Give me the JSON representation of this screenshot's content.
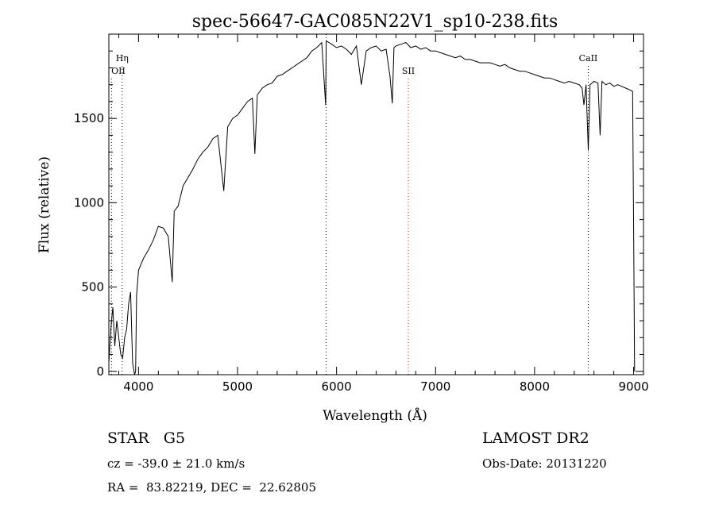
{
  "chart_data": {
    "type": "line",
    "title": "spec-56647-GAC085N22V1_sp10-238.fits",
    "xlabel": "Wavelength (Å)",
    "ylabel": "Flux (relative)",
    "xlim": [
      3700,
      9100
    ],
    "ylim": [
      -20,
      2000
    ],
    "xticks": [
      4000,
      5000,
      6000,
      7000,
      8000,
      9000
    ],
    "xtick_labels": [
      "4000",
      "5000",
      "6000",
      "7000",
      "8000",
      "9000"
    ],
    "yticks": [
      0,
      500,
      1000,
      1500
    ],
    "ytick_labels": [
      "0",
      "500",
      "1000",
      "1500"
    ],
    "grid": false,
    "series": [
      {
        "x": [
          3700,
          3720,
          3740,
          3760,
          3780,
          3800,
          3820,
          3840,
          3860,
          3880,
          3900,
          3920,
          3940,
          3960,
          3970,
          3980,
          4000,
          4050,
          4100,
          4150,
          4200,
          4250,
          4300,
          4340,
          4360,
          4400,
          4450,
          4500,
          4550,
          4600,
          4650,
          4700,
          4750,
          4800,
          4861,
          4900,
          4950,
          5000,
          5050,
          5100,
          5150,
          5175,
          5200,
          5250,
          5300,
          5350,
          5400,
          5450,
          5500,
          5550,
          5600,
          5650,
          5700,
          5750,
          5800,
          5850,
          5890,
          5895,
          5950,
          6000,
          6050,
          6100,
          6150,
          6200,
          6250,
          6300,
          6350,
          6400,
          6450,
          6500,
          6540,
          6563,
          6580,
          6600,
          6650,
          6700,
          6750,
          6800,
          6850,
          6900,
          6950,
          7000,
          7050,
          7100,
          7150,
          7200,
          7250,
          7300,
          7350,
          7400,
          7450,
          7500,
          7550,
          7600,
          7650,
          7700,
          7750,
          7800,
          7850,
          7900,
          7950,
          8000,
          8050,
          8100,
          8150,
          8200,
          8250,
          8300,
          8350,
          8400,
          8450,
          8480,
          8498,
          8520,
          8542,
          8560,
          8600,
          8640,
          8662,
          8680,
          8720,
          8760,
          8800,
          8840,
          8880,
          8920,
          8960,
          8990,
          9000,
          9010
        ],
        "y": [
          50,
          250,
          380,
          150,
          300,
          200,
          100,
          80,
          200,
          250,
          400,
          470,
          50,
          -20,
          0,
          450,
          600,
          670,
          720,
          780,
          860,
          850,
          800,
          530,
          950,
          980,
          1100,
          1150,
          1200,
          1260,
          1300,
          1330,
          1380,
          1400,
          1070,
          1450,
          1500,
          1520,
          1560,
          1600,
          1620,
          1290,
          1640,
          1680,
          1700,
          1710,
          1750,
          1760,
          1780,
          1800,
          1820,
          1840,
          1860,
          1900,
          1920,
          1950,
          1580,
          1960,
          1940,
          1920,
          1930,
          1910,
          1880,
          1930,
          1700,
          1900,
          1920,
          1930,
          1900,
          1910,
          1750,
          1590,
          1920,
          1930,
          1940,
          1950,
          1920,
          1930,
          1910,
          1920,
          1900,
          1900,
          1890,
          1880,
          1870,
          1860,
          1870,
          1850,
          1850,
          1840,
          1830,
          1830,
          1830,
          1820,
          1810,
          1820,
          1800,
          1790,
          1780,
          1780,
          1770,
          1760,
          1750,
          1740,
          1740,
          1730,
          1720,
          1710,
          1720,
          1710,
          1700,
          1680,
          1580,
          1700,
          1310,
          1700,
          1720,
          1710,
          1400,
          1720,
          1700,
          1710,
          1690,
          1700,
          1690,
          1680,
          1670,
          1660,
          900,
          0
        ]
      }
    ],
    "lines": [
      {
        "label": "Hη",
        "x": 3835,
        "color": "#000000",
        "label_y": 1840
      },
      {
        "label": "OII",
        "x": 3727,
        "color": "#000000",
        "label_y": 1765
      },
      {
        "label": "",
        "x": 5895,
        "color": "#000000",
        "label_y": null
      },
      {
        "label": "SII",
        "x": 6725,
        "color": "#cc0000",
        "label_y": 1765
      },
      {
        "label": "CaII",
        "x": 8542,
        "color": "#000000",
        "label_y": 1840
      }
    ]
  },
  "info": {
    "class_label": "STAR   G5",
    "survey": "LAMOST DR2",
    "redshift": "cz = -39.0 ± 21.0 km/s",
    "obs_date": "Obs-Date: 20131220",
    "coords": "RA =  83.82219, DEC =  22.62805"
  }
}
